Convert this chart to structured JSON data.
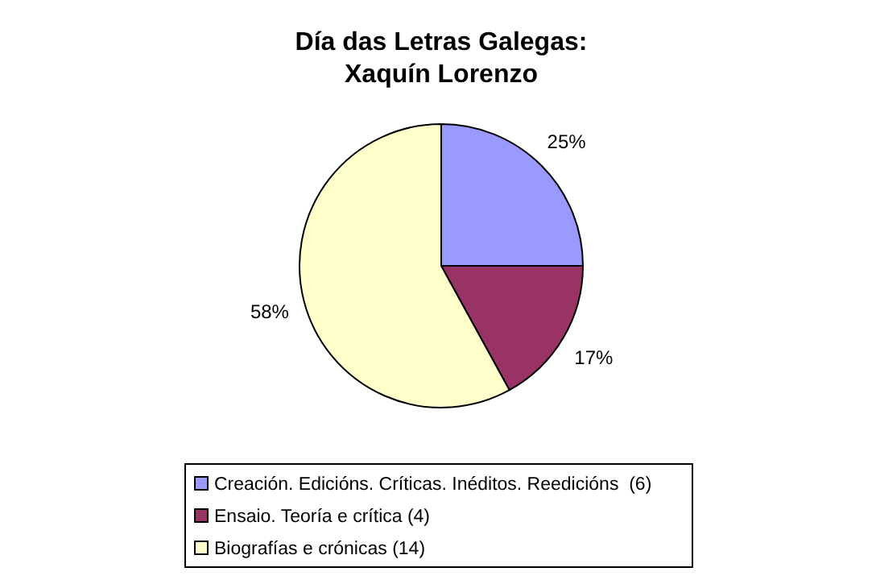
{
  "chart_data": {
    "type": "pie",
    "title": "Día das Letras Galegas:\nXaquín Lorenzo",
    "categories": [
      "Creación. Edicións. Críticas. Inéditos. Reedicións  (6)",
      "Ensaio. Teoría e crítica (4)",
      "Biografías e crónicas (14)"
    ],
    "values": [
      25,
      17,
      58
    ],
    "colors": [
      "#9999ff",
      "#993366",
      "#ffffcc"
    ],
    "value_labels": [
      "25%",
      "17%",
      "58%"
    ],
    "legend": "bottom"
  }
}
